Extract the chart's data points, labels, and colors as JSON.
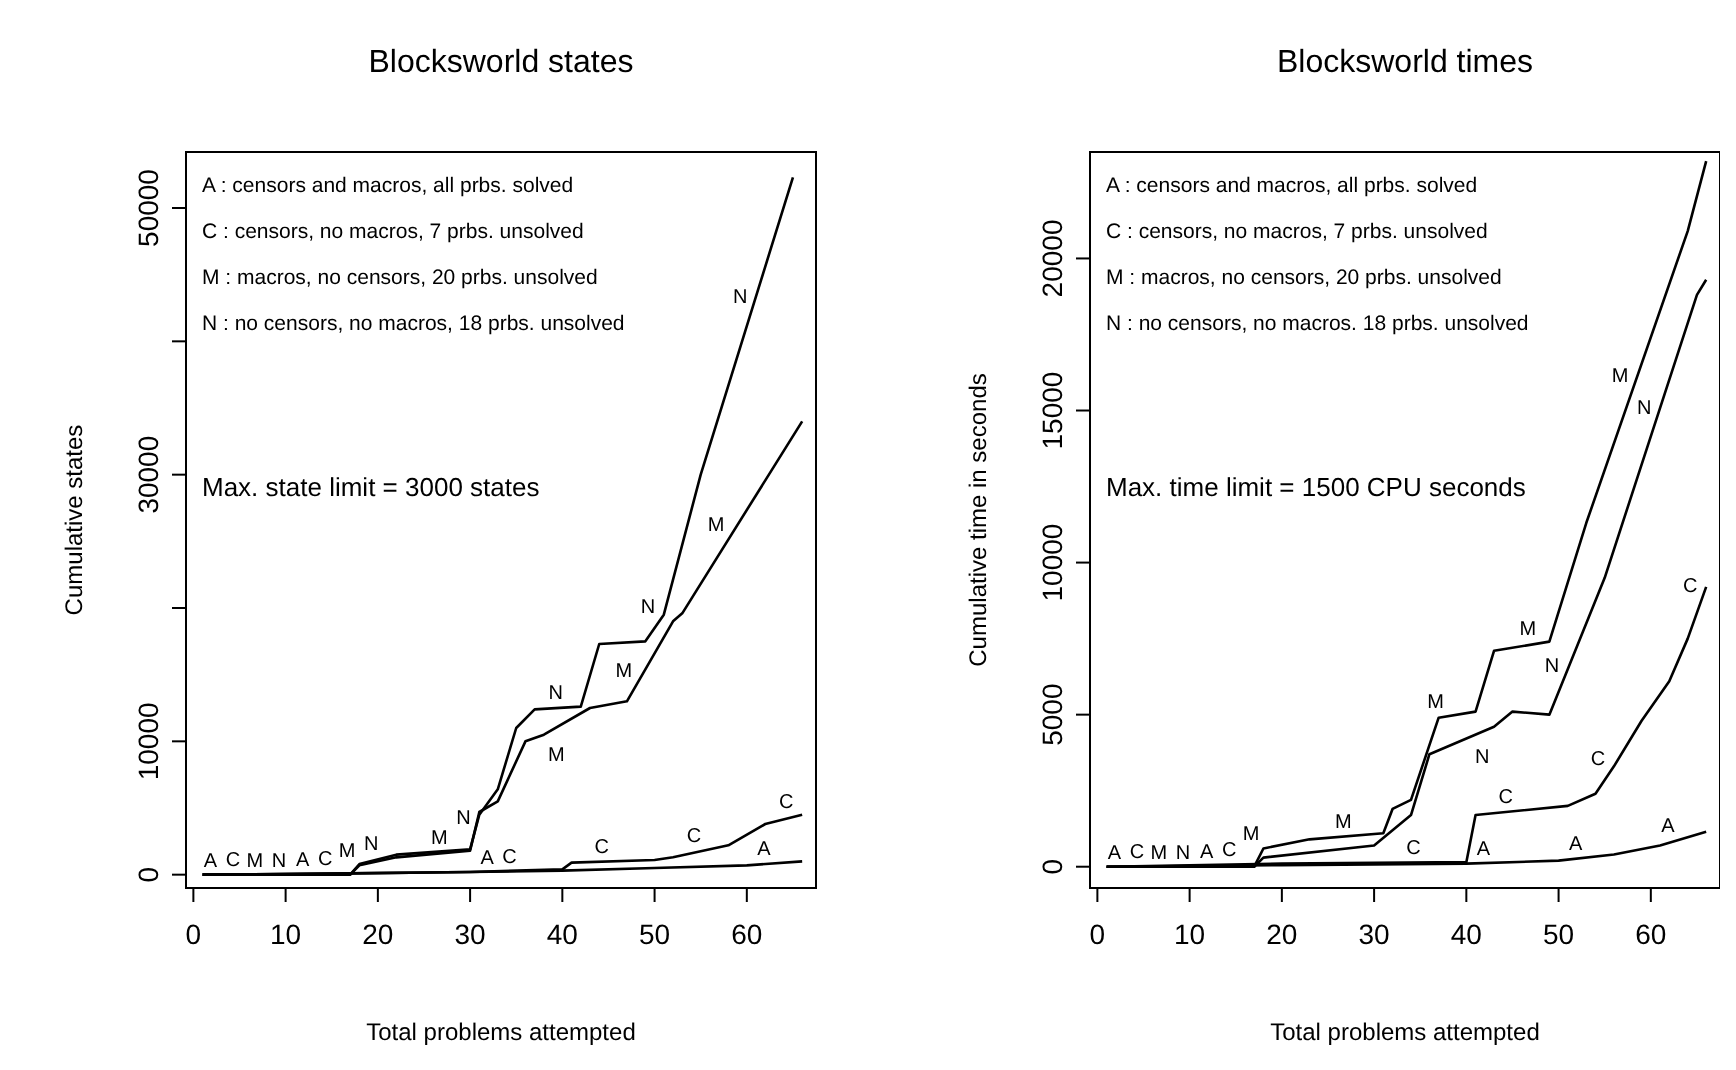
{
  "chart_data": [
    {
      "type": "line",
      "title": "Blocksworld states",
      "xlabel": "Total problems attempted",
      "ylabel": "Cumulative states",
      "xlim": [
        -0.8,
        67.5
      ],
      "xticks": [
        0,
        10,
        20,
        30,
        40,
        50,
        60
      ],
      "ylim": [
        -1000,
        54200
      ],
      "yticks": [
        0,
        10000,
        {
          "value": 20000,
          "label": null
        },
        30000,
        {
          "value": 40000,
          "label": null
        },
        50000
      ],
      "annotations": [
        "A :  censors and macros,  all prbs. solved",
        "C :  censors,  no macros,  7 prbs. unsolved",
        "M :  macros,  no censors,  20 prbs. unsolved",
        "N :  no censors,  no macros,  18 prbs. unsolved",
        "Max. state limit = 3000 states"
      ],
      "series": [
        {
          "name": "A",
          "color": "#000000",
          "x": [
            1,
            17,
            30,
            40,
            50,
            60,
            66
          ],
          "values": [
            0,
            100,
            200,
            300,
            500,
            700,
            1000
          ]
        },
        {
          "name": "C",
          "color": "#000000",
          "x": [
            1,
            17,
            30,
            40,
            41,
            50,
            52,
            58,
            62,
            66
          ],
          "values": [
            0,
            100,
            200,
            400,
            900,
            1100,
            1300,
            2200,
            3800,
            4500
          ]
        },
        {
          "name": "M",
          "color": "#000000",
          "x": [
            1,
            17,
            18,
            22,
            30,
            31,
            33,
            36,
            38,
            43,
            47,
            52,
            53,
            66
          ],
          "values": [
            0,
            0,
            700,
            1300,
            1800,
            4700,
            5500,
            10000,
            10500,
            12500,
            13000,
            19000,
            19600,
            34000
          ]
        },
        {
          "name": "N",
          "color": "#000000",
          "x": [
            1,
            17,
            18,
            22,
            30,
            31,
            33,
            35,
            37,
            42,
            44,
            49,
            51,
            55,
            65
          ],
          "values": [
            0,
            0,
            800,
            1500,
            1900,
            4500,
            6400,
            11000,
            12400,
            12600,
            17300,
            17500,
            19500,
            30000,
            52300
          ]
        }
      ]
    },
    {
      "type": "line",
      "title": "Blocksworld times",
      "xlabel": "Total problems attempted",
      "ylabel": "Cumulative time in seconds",
      "xlim": [
        -0.8,
        67.5
      ],
      "xticks": [
        0,
        10,
        20,
        30,
        40,
        50,
        60
      ],
      "ylim": [
        -700,
        23500
      ],
      "yticks": [
        0,
        5000,
        10000,
        15000,
        20000
      ],
      "annotations": [
        "A :  censors and macros,  all prbs. solved",
        "C :  censors,  no macros,  7 prbs. unsolved",
        "M :  macros,  no censors,  20 prbs. unsolved",
        "N :  no censors,  no macros.  18 prbs. unsolved",
        "Max. time limit = 1500 CPU seconds"
      ],
      "series": [
        {
          "name": "A",
          "color": "#000000",
          "x": [
            1,
            20,
            40,
            50,
            56,
            61,
            66
          ],
          "values": [
            0,
            50,
            100,
            200,
            400,
            700,
            1150
          ]
        },
        {
          "name": "C",
          "color": "#000000",
          "x": [
            1,
            20,
            40,
            41,
            51,
            54,
            56,
            59,
            62,
            64,
            66
          ],
          "values": [
            0,
            100,
            150,
            1700,
            2000,
            2400,
            3300,
            4800,
            6100,
            7500,
            9200
          ]
        },
        {
          "name": "M",
          "color": "#000000",
          "x": [
            1,
            17,
            18,
            23,
            31,
            32,
            34,
            37,
            41,
            43,
            49,
            53,
            64,
            66
          ],
          "values": [
            0,
            0,
            600,
            900,
            1100,
            1900,
            2200,
            4900,
            5100,
            7100,
            7400,
            11300,
            20900,
            23200
          ]
        },
        {
          "name": "N",
          "color": "#000000",
          "x": [
            1,
            17,
            18,
            30,
            32,
            34,
            36,
            43,
            45,
            49,
            55,
            65,
            66
          ],
          "values": [
            0,
            0,
            300,
            700,
            1200,
            1700,
            3700,
            4600,
            5100,
            5000,
            9500,
            18800,
            19300
          ]
        }
      ]
    }
  ]
}
